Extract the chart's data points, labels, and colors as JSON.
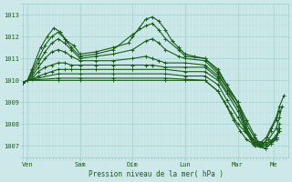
{
  "bg_color": "#cce8e8",
  "grid_color_major": "#aad4d4",
  "grid_color_minor": "#bbdddd",
  "line_color": "#1a5c1a",
  "xlabel": "Pression niveau de la mer( hPa )",
  "ylim": [
    1006.5,
    1013.5
  ],
  "yticks": [
    1007,
    1008,
    1009,
    1010,
    1011,
    1012,
    1013
  ],
  "day_labels": [
    "Ven",
    "Sam",
    "Dim",
    "Lun",
    "Mar",
    "Me"
  ],
  "day_positions": [
    18,
    66,
    114,
    162,
    210,
    243
  ],
  "xlim": [
    14,
    256
  ],
  "series": [
    {
      "pts": [
        [
          14,
          1009.9
        ],
        [
          18,
          1010.0
        ],
        [
          22,
          1010.5
        ],
        [
          30,
          1011.5
        ],
        [
          36,
          1012.0
        ],
        [
          42,
          1012.4
        ],
        [
          48,
          1012.2
        ],
        [
          54,
          1011.8
        ],
        [
          60,
          1011.6
        ],
        [
          66,
          1011.2
        ],
        [
          80,
          1011.3
        ],
        [
          96,
          1011.5
        ],
        [
          110,
          1011.7
        ],
        [
          114,
          1012.0
        ],
        [
          120,
          1012.4
        ],
        [
          126,
          1012.8
        ],
        [
          132,
          1012.9
        ],
        [
          138,
          1012.7
        ],
        [
          144,
          1012.3
        ],
        [
          150,
          1011.8
        ],
        [
          156,
          1011.5
        ],
        [
          162,
          1011.2
        ],
        [
          170,
          1011.1
        ],
        [
          180,
          1011.0
        ],
        [
          192,
          1010.5
        ],
        [
          200,
          1009.8
        ],
        [
          210,
          1009.0
        ],
        [
          218,
          1008.2
        ],
        [
          225,
          1007.5
        ],
        [
          230,
          1007.1
        ],
        [
          235,
          1007.0
        ],
        [
          240,
          1007.2
        ],
        [
          245,
          1007.5
        ],
        [
          248,
          1007.7
        ]
      ]
    },
    {
      "pts": [
        [
          14,
          1009.9
        ],
        [
          18,
          1010.0
        ],
        [
          22,
          1010.4
        ],
        [
          28,
          1011.0
        ],
        [
          34,
          1011.6
        ],
        [
          40,
          1012.0
        ],
        [
          46,
          1012.2
        ],
        [
          52,
          1011.9
        ],
        [
          58,
          1011.5
        ],
        [
          66,
          1011.1
        ],
        [
          80,
          1011.2
        ],
        [
          96,
          1011.4
        ],
        [
          114,
          1012.1
        ],
        [
          126,
          1012.5
        ],
        [
          132,
          1012.6
        ],
        [
          138,
          1012.3
        ],
        [
          144,
          1011.9
        ],
        [
          156,
          1011.4
        ],
        [
          162,
          1011.1
        ],
        [
          180,
          1011.0
        ],
        [
          192,
          1010.4
        ],
        [
          210,
          1009.0
        ],
        [
          218,
          1008.0
        ],
        [
          225,
          1007.4
        ],
        [
          230,
          1007.0
        ],
        [
          235,
          1006.9
        ],
        [
          240,
          1007.1
        ],
        [
          245,
          1007.4
        ],
        [
          248,
          1007.7
        ]
      ]
    },
    {
      "pts": [
        [
          14,
          1009.9
        ],
        [
          18,
          1010.0
        ],
        [
          22,
          1010.3
        ],
        [
          28,
          1010.8
        ],
        [
          34,
          1011.3
        ],
        [
          40,
          1011.7
        ],
        [
          46,
          1011.9
        ],
        [
          52,
          1011.7
        ],
        [
          58,
          1011.4
        ],
        [
          66,
          1011.0
        ],
        [
          80,
          1011.1
        ],
        [
          96,
          1011.2
        ],
        [
          114,
          1011.4
        ],
        [
          126,
          1011.8
        ],
        [
          132,
          1011.9
        ],
        [
          138,
          1011.7
        ],
        [
          144,
          1011.4
        ],
        [
          156,
          1011.1
        ],
        [
          162,
          1011.0
        ],
        [
          180,
          1010.9
        ],
        [
          192,
          1010.3
        ],
        [
          210,
          1008.8
        ],
        [
          218,
          1007.8
        ],
        [
          225,
          1007.2
        ],
        [
          230,
          1007.0
        ],
        [
          235,
          1006.9
        ],
        [
          240,
          1007.1
        ],
        [
          245,
          1007.3
        ]
      ]
    },
    {
      "pts": [
        [
          14,
          1009.9
        ],
        [
          18,
          1010.0
        ],
        [
          22,
          1010.2
        ],
        [
          28,
          1010.6
        ],
        [
          34,
          1011.0
        ],
        [
          40,
          1011.3
        ],
        [
          46,
          1011.4
        ],
        [
          52,
          1011.3
        ],
        [
          58,
          1011.1
        ],
        [
          66,
          1010.9
        ],
        [
          80,
          1010.9
        ],
        [
          96,
          1010.9
        ],
        [
          114,
          1011.0
        ],
        [
          126,
          1011.1
        ],
        [
          132,
          1011.0
        ],
        [
          138,
          1010.9
        ],
        [
          144,
          1010.8
        ],
        [
          162,
          1010.8
        ],
        [
          180,
          1010.7
        ],
        [
          192,
          1010.2
        ],
        [
          210,
          1009.0
        ],
        [
          218,
          1007.8
        ],
        [
          225,
          1007.2
        ],
        [
          235,
          1007.1
        ],
        [
          245,
          1007.4
        ],
        [
          248,
          1007.8
        ]
      ]
    },
    {
      "pts": [
        [
          14,
          1009.9
        ],
        [
          18,
          1010.0
        ],
        [
          22,
          1010.1
        ],
        [
          28,
          1010.4
        ],
        [
          34,
          1010.6
        ],
        [
          40,
          1010.7
        ],
        [
          46,
          1010.8
        ],
        [
          52,
          1010.8
        ],
        [
          58,
          1010.7
        ],
        [
          66,
          1010.7
        ],
        [
          80,
          1010.7
        ],
        [
          96,
          1010.7
        ],
        [
          114,
          1010.7
        ],
        [
          126,
          1010.7
        ],
        [
          132,
          1010.7
        ],
        [
          144,
          1010.6
        ],
        [
          162,
          1010.6
        ],
        [
          180,
          1010.6
        ],
        [
          192,
          1010.1
        ],
        [
          200,
          1009.5
        ],
        [
          210,
          1008.8
        ],
        [
          218,
          1007.7
        ],
        [
          225,
          1007.1
        ],
        [
          235,
          1007.0
        ],
        [
          245,
          1007.4
        ]
      ]
    },
    {
      "pts": [
        [
          14,
          1009.9
        ],
        [
          18,
          1010.0
        ],
        [
          22,
          1010.05
        ],
        [
          28,
          1010.2
        ],
        [
          34,
          1010.3
        ],
        [
          40,
          1010.4
        ],
        [
          46,
          1010.5
        ],
        [
          52,
          1010.5
        ],
        [
          58,
          1010.5
        ],
        [
          66,
          1010.5
        ],
        [
          80,
          1010.5
        ],
        [
          96,
          1010.5
        ],
        [
          114,
          1010.5
        ],
        [
          144,
          1010.5
        ],
        [
          162,
          1010.4
        ],
        [
          180,
          1010.4
        ],
        [
          192,
          1010.0
        ],
        [
          200,
          1009.4
        ],
        [
          210,
          1008.6
        ],
        [
          218,
          1007.6
        ],
        [
          225,
          1007.0
        ],
        [
          235,
          1006.9
        ],
        [
          245,
          1007.3
        ],
        [
          248,
          1008.0
        ]
      ]
    },
    {
      "pts": [
        [
          14,
          1009.9
        ],
        [
          18,
          1010.0
        ],
        [
          46,
          1010.3
        ],
        [
          66,
          1010.3
        ],
        [
          96,
          1010.3
        ],
        [
          144,
          1010.3
        ],
        [
          162,
          1010.2
        ],
        [
          180,
          1010.2
        ],
        [
          192,
          1009.8
        ],
        [
          200,
          1009.1
        ],
        [
          210,
          1008.3
        ],
        [
          216,
          1007.8
        ],
        [
          222,
          1007.3
        ],
        [
          228,
          1007.1
        ],
        [
          232,
          1007.1
        ],
        [
          238,
          1007.3
        ],
        [
          245,
          1007.8
        ],
        [
          248,
          1008.3
        ],
        [
          250,
          1008.8
        ]
      ]
    },
    {
      "pts": [
        [
          14,
          1009.9
        ],
        [
          18,
          1010.0
        ],
        [
          46,
          1010.1
        ],
        [
          66,
          1010.1
        ],
        [
          96,
          1010.1
        ],
        [
          144,
          1010.1
        ],
        [
          162,
          1010.05
        ],
        [
          180,
          1010.0
        ],
        [
          192,
          1009.5
        ],
        [
          200,
          1008.8
        ],
        [
          206,
          1008.2
        ],
        [
          212,
          1007.7
        ],
        [
          218,
          1007.3
        ],
        [
          224,
          1007.1
        ],
        [
          230,
          1007.0
        ],
        [
          235,
          1007.2
        ],
        [
          240,
          1007.7
        ],
        [
          245,
          1008.2
        ],
        [
          248,
          1008.6
        ]
      ]
    },
    {
      "pts": [
        [
          14,
          1009.9
        ],
        [
          18,
          1010.0
        ],
        [
          46,
          1010.0
        ],
        [
          66,
          1010.0
        ],
        [
          96,
          1010.0
        ],
        [
          144,
          1010.0
        ],
        [
          162,
          1010.0
        ],
        [
          180,
          1010.0
        ],
        [
          192,
          1009.5
        ],
        [
          198,
          1009.0
        ],
        [
          204,
          1008.5
        ],
        [
          210,
          1008.0
        ],
        [
          216,
          1007.7
        ],
        [
          222,
          1007.4
        ],
        [
          228,
          1007.2
        ],
        [
          232,
          1007.2
        ],
        [
          236,
          1007.4
        ],
        [
          240,
          1007.8
        ],
        [
          245,
          1008.3
        ],
        [
          248,
          1008.8
        ],
        [
          252,
          1009.3
        ]
      ]
    }
  ]
}
